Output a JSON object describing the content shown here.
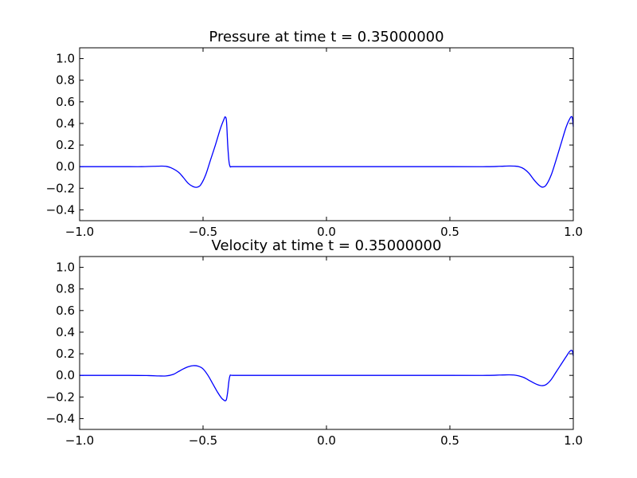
{
  "chart_data": [
    {
      "type": "line",
      "title": "Pressure at time t =     0.35000000",
      "xlim": [
        -1.0,
        1.0
      ],
      "ylim": [
        -0.5,
        1.1
      ],
      "xticks": [
        -1.0,
        -0.5,
        0.0,
        0.5,
        1.0
      ],
      "xtick_labels": [
        "−1.0",
        "−0.5",
        "0.0",
        "0.5",
        "1.0"
      ],
      "yticks": [
        -0.4,
        -0.2,
        0.0,
        0.2,
        0.4,
        0.6,
        0.8,
        1.0
      ],
      "ytick_labels": [
        "−0.4",
        "−0.2",
        "0.0",
        "0.2",
        "0.4",
        "0.6",
        "0.8",
        "1.0"
      ],
      "grid": false,
      "color": "#0000ff",
      "series": [
        {
          "x": [
            -1.0,
            -0.8,
            -0.75,
            -0.7,
            -0.67,
            -0.65,
            -0.63,
            -0.6,
            -0.58,
            -0.56,
            -0.54,
            -0.525,
            -0.51,
            -0.49,
            -0.47,
            -0.45,
            -0.43,
            -0.415,
            -0.41,
            -0.405,
            -0.4,
            -0.395,
            -0.39,
            -0.38,
            -0.3,
            0.0,
            0.5,
            0.65,
            0.7,
            0.74,
            0.76,
            0.78,
            0.8,
            0.82,
            0.84,
            0.86,
            0.875,
            0.89,
            0.91,
            0.93,
            0.95,
            0.97,
            0.985,
            0.995,
            1.0
          ],
          "y": [
            0.0,
            0.0,
            0.0,
            0.003,
            0.005,
            0.003,
            -0.01,
            -0.05,
            -0.1,
            -0.155,
            -0.185,
            -0.19,
            -0.17,
            -0.08,
            0.06,
            0.2,
            0.35,
            0.44,
            0.46,
            0.42,
            0.2,
            0.05,
            0.0,
            0.0,
            0.0,
            0.0,
            0.0,
            0.0,
            0.003,
            0.006,
            0.005,
            0.0,
            -0.02,
            -0.06,
            -0.12,
            -0.17,
            -0.19,
            -0.17,
            -0.08,
            0.06,
            0.21,
            0.36,
            0.44,
            0.46,
            0.37
          ]
        }
      ]
    },
    {
      "type": "line",
      "title": "Velocity at time t =     0.35000000",
      "xlim": [
        -1.0,
        1.0
      ],
      "ylim": [
        -0.5,
        1.1
      ],
      "xticks": [
        -1.0,
        -0.5,
        0.0,
        0.5,
        1.0
      ],
      "xtick_labels": [
        "−1.0",
        "−0.5",
        "0.0",
        "0.5",
        "1.0"
      ],
      "yticks": [
        -0.4,
        -0.2,
        0.0,
        0.2,
        0.4,
        0.6,
        0.8,
        1.0
      ],
      "ytick_labels": [
        "−0.4",
        "−0.2",
        "0.0",
        "0.2",
        "0.4",
        "0.6",
        "0.8",
        "1.0"
      ],
      "grid": false,
      "color": "#0000ff",
      "series": [
        {
          "x": [
            -1.0,
            -0.8,
            -0.72,
            -0.68,
            -0.65,
            -0.62,
            -0.6,
            -0.58,
            -0.56,
            -0.54,
            -0.52,
            -0.5,
            -0.48,
            -0.46,
            -0.44,
            -0.425,
            -0.415,
            -0.41,
            -0.405,
            -0.4,
            -0.395,
            -0.39,
            -0.38,
            -0.3,
            0.0,
            0.5,
            0.65,
            0.7,
            0.74,
            0.76,
            0.78,
            0.8,
            0.82,
            0.84,
            0.86,
            0.875,
            0.89,
            0.91,
            0.93,
            0.95,
            0.97,
            0.985,
            0.995,
            1.0
          ],
          "y": [
            0.0,
            0.0,
            -0.002,
            -0.005,
            -0.005,
            0.01,
            0.035,
            0.06,
            0.08,
            0.09,
            0.085,
            0.06,
            0.0,
            -0.08,
            -0.16,
            -0.21,
            -0.23,
            -0.235,
            -0.22,
            -0.15,
            -0.05,
            0.0,
            0.0,
            0.0,
            0.0,
            0.0,
            0.0,
            0.003,
            0.005,
            0.003,
            -0.005,
            -0.02,
            -0.045,
            -0.07,
            -0.09,
            -0.095,
            -0.085,
            -0.04,
            0.03,
            0.1,
            0.17,
            0.22,
            0.23,
            0.18
          ]
        }
      ]
    }
  ]
}
